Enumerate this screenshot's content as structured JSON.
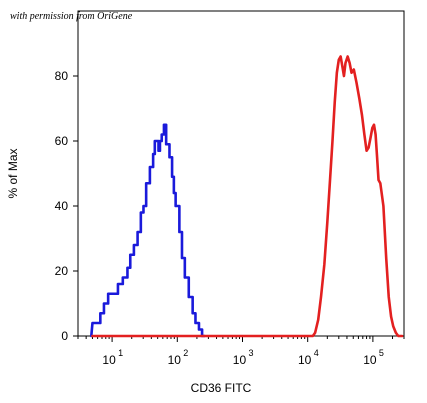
{
  "watermark": "with permission from OriGene",
  "chart_data": {
    "type": "line",
    "title": "",
    "xlabel": "CD36 FITC",
    "ylabel": "% of Max",
    "x_scale": "log",
    "xlim": [
      3,
      300000
    ],
    "ylim": [
      0,
      100
    ],
    "x_ticks": [
      {
        "value": 10,
        "mantissa": "10",
        "exp": "1"
      },
      {
        "value": 100,
        "mantissa": "10",
        "exp": "2"
      },
      {
        "value": 1000,
        "mantissa": "10",
        "exp": "3"
      },
      {
        "value": 10000,
        "mantissa": "10",
        "exp": "4"
      },
      {
        "value": 100000,
        "mantissa": "10",
        "exp": "5"
      }
    ],
    "y_ticks": [
      {
        "value": 0,
        "label": "0"
      },
      {
        "value": 20,
        "label": "20"
      },
      {
        "value": 40,
        "label": "40"
      },
      {
        "value": 60,
        "label": "60"
      },
      {
        "value": 80,
        "label": "80"
      }
    ],
    "grid": false,
    "series": [
      {
        "color": "#1a1adb",
        "x": [
          4.8,
          5.0,
          6.6,
          6.6,
          7.5,
          7.5,
          8.7,
          8.7,
          12.3,
          12.3,
          14.6,
          14.6,
          17.2,
          17.2,
          19.0,
          19.0,
          21.6,
          21.6,
          24.6,
          24.6,
          27.6,
          27.6,
          30.3,
          30.3,
          33.3,
          33.3,
          38.0,
          38.0,
          42.6,
          42.6,
          45.2,
          45.2,
          51.5,
          51.5,
          54.2,
          54.2,
          57.7,
          57.7,
          62.4,
          62.4,
          67.5,
          67.5,
          75.9,
          75.9,
          83.2,
          83.2,
          88.6,
          88.6,
          94.3,
          94.3,
          107.6,
          107.6,
          118.0,
          118.0,
          130.5,
          130.5,
          150.0,
          150.0,
          172.0,
          172.0,
          190.0,
          190.0,
          215.0,
          215.0,
          240.0,
          240.0,
          260.0
        ],
        "y": [
          0,
          4,
          4,
          7,
          7,
          10,
          10,
          13,
          13,
          16,
          16,
          18,
          18,
          21,
          21,
          25,
          25,
          28,
          28,
          32,
          32,
          38,
          38,
          40,
          40,
          47,
          47,
          52,
          52,
          56,
          56,
          60,
          60,
          57,
          57,
          60,
          60,
          62,
          62,
          65,
          65,
          59,
          59,
          55,
          55,
          49,
          49,
          44,
          44,
          40,
          40,
          32,
          32,
          24,
          24,
          18,
          18,
          12,
          12,
          7,
          7,
          4,
          4,
          2,
          2,
          0,
          0
        ]
      },
      {
        "color": "#e32020",
        "x": [
          5,
          12000,
          13000,
          14500,
          16000,
          18000,
          20000,
          22000,
          24000,
          26000,
          28000,
          30000,
          32000,
          34000,
          36000,
          38000,
          41000,
          44000,
          47000,
          51000,
          56000,
          62000,
          68000,
          74000,
          80000,
          86000,
          92000,
          98000,
          104000,
          110000,
          116000,
          122000,
          130000,
          145000,
          160000,
          175000,
          190000,
          205000,
          225000,
          245000,
          265000,
          280000
        ],
        "y": [
          0,
          0,
          1,
          5,
          12,
          22,
          35,
          48,
          60,
          72,
          81,
          85,
          86,
          83,
          80,
          84,
          86,
          84,
          81,
          82,
          78,
          73,
          68,
          62,
          57,
          58,
          61,
          64,
          65,
          62,
          55,
          48,
          47,
          40,
          24,
          12,
          6,
          3,
          1,
          0,
          0,
          0
        ]
      }
    ]
  }
}
